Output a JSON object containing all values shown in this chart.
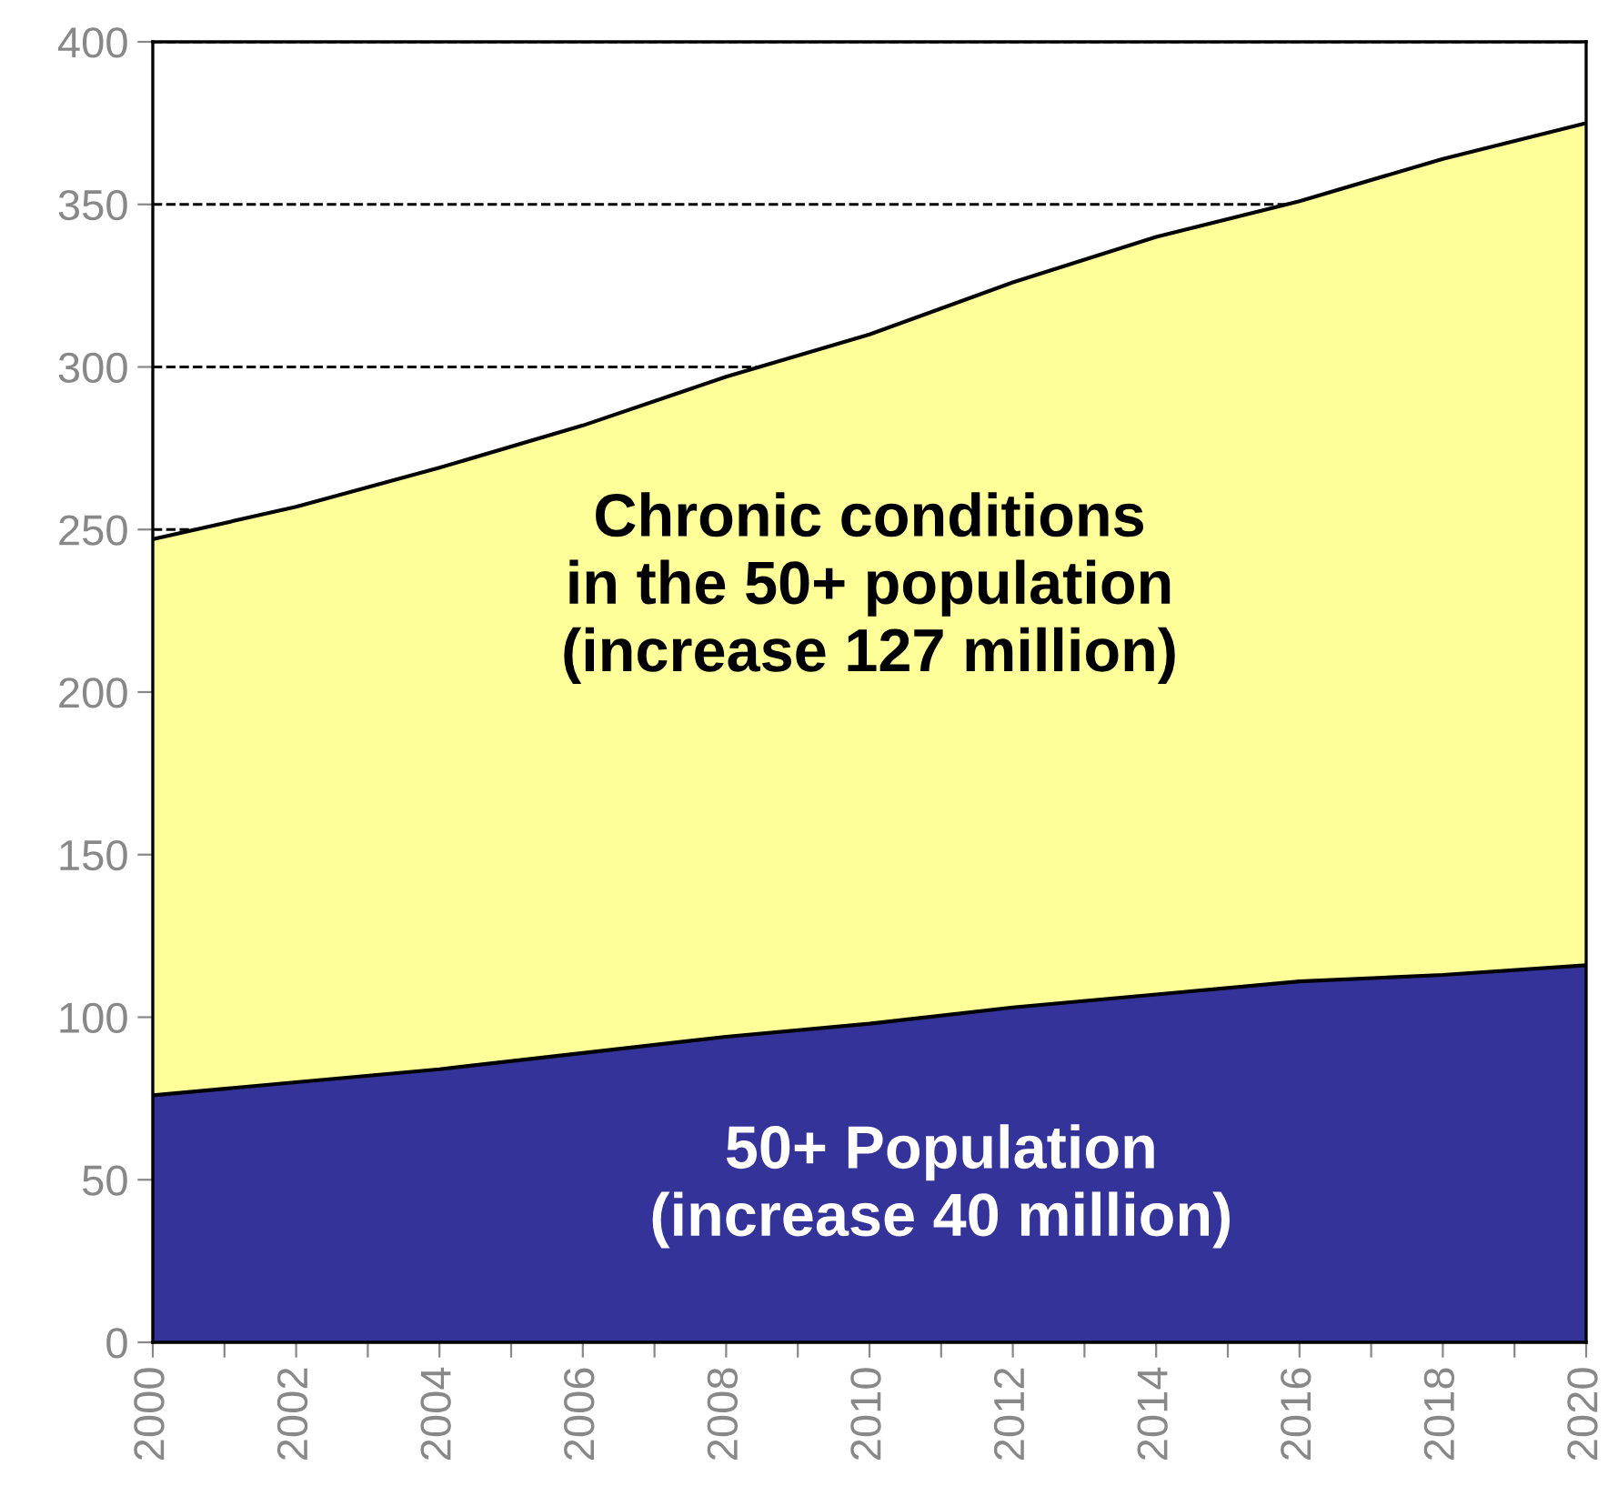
{
  "chart_data": {
    "type": "area",
    "x": [
      2000,
      2002,
      2004,
      2006,
      2008,
      2010,
      2012,
      2014,
      2016,
      2018,
      2020
    ],
    "series": [
      {
        "color": "#ffff99",
        "values": [
          247,
          257,
          269,
          282,
          297,
          310,
          326,
          340,
          351,
          364,
          375
        ]
      },
      {
        "color": "#333399",
        "values": [
          76,
          80,
          84,
          89,
          94,
          98,
          103,
          107,
          111,
          113,
          116
        ]
      }
    ],
    "xlim": [
      2000,
      2020
    ],
    "xticks": [
      2000,
      {
        "value": 2001,
        "label": null
      },
      2002,
      {
        "value": 2003,
        "label": null
      },
      2004,
      {
        "value": 2005,
        "label": null
      },
      2006,
      {
        "value": 2007,
        "label": null
      },
      2008,
      {
        "value": 2009,
        "label": null
      },
      2010,
      {
        "value": 2011,
        "label": null
      },
      2012,
      {
        "value": 2013,
        "label": null
      },
      2014,
      {
        "value": 2015,
        "label": null
      },
      2016,
      {
        "value": 2017,
        "label": null
      },
      2018,
      {
        "value": 2019,
        "label": null
      },
      2020
    ],
    "ylim": [
      0,
      400
    ],
    "yticks": [
      0,
      50,
      100,
      150,
      200,
      250,
      300,
      350,
      400
    ],
    "grid": "y",
    "line_style": "solid",
    "annotations": [
      "Chronic conditions\nin the 50+ population\n(increase 127 million)",
      "50+ Population\n(increase 40 million)"
    ]
  }
}
